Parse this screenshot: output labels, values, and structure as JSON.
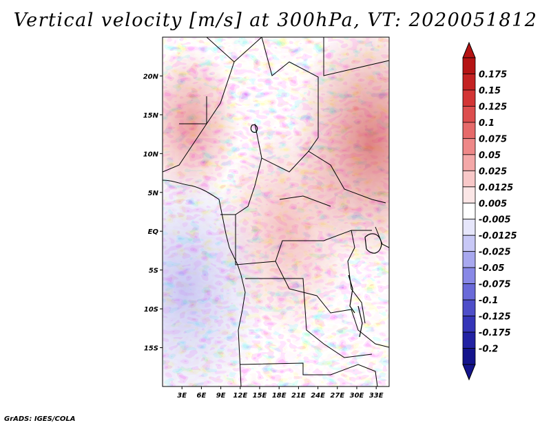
{
  "title": "Vertical velocity [m/s] at 300hPa, VT: 2020051812",
  "credit": "GrADS: IGES/COLA",
  "map": {
    "lat_ticks": [
      "20N",
      "15N",
      "10N",
      "5N",
      "EQ",
      "5S",
      "10S",
      "15S"
    ],
    "lat_values": [
      20,
      15,
      10,
      5,
      0,
      -5,
      -10,
      -15
    ],
    "lon_ticks": [
      "3E",
      "6E",
      "9E",
      "12E",
      "15E",
      "18E",
      "21E",
      "24E",
      "27E",
      "30E",
      "33E"
    ],
    "lon_values": [
      3,
      6,
      9,
      12,
      15,
      18,
      21,
      24,
      27,
      30,
      33
    ],
    "lat_range": [
      -20,
      25
    ],
    "lon_range": [
      0,
      35
    ]
  },
  "colorbar": {
    "labels": [
      "0.175",
      "0.15",
      "0.125",
      "0.1",
      "0.075",
      "0.05",
      "0.025",
      "0.0125",
      "0.005",
      "-0.005",
      "-0.0125",
      "-0.025",
      "-0.05",
      "-0.075",
      "-0.1",
      "-0.125",
      "-0.175",
      "-0.2"
    ],
    "colors": [
      "#b51414",
      "#c42222",
      "#d33535",
      "#dd4e4e",
      "#e66a6a",
      "#ee8888",
      "#f4a8a8",
      "#f8c8c8",
      "#fbe6e6",
      "#ffffff",
      "#e6e6fb",
      "#c8c8f6",
      "#a8a8ef",
      "#8888e6",
      "#6a6ad9",
      "#4e4ec9",
      "#3535b8",
      "#2222a3",
      "#14148c"
    ]
  }
}
